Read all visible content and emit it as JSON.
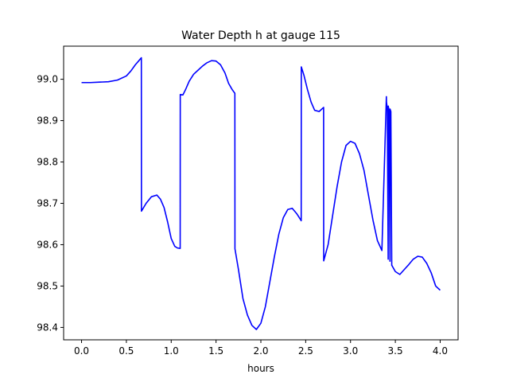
{
  "chart_data": {
    "type": "line",
    "title": "Water Depth h at gauge 115",
    "xlabel": "hours",
    "ylabel": "",
    "xlim": [
      -0.2,
      4.2
    ],
    "ylim": [
      98.37,
      99.08
    ],
    "grid": false,
    "xticks": [
      0.0,
      0.5,
      1.0,
      1.5,
      2.0,
      2.5,
      3.0,
      3.5,
      4.0
    ],
    "xtick_labels": [
      "0.0",
      "0.5",
      "1.0",
      "1.5",
      "2.0",
      "2.5",
      "3.0",
      "3.5",
      "4.0"
    ],
    "yticks": [
      98.4,
      98.5,
      98.6,
      98.7,
      98.8,
      98.9,
      99.0
    ],
    "ytick_labels": [
      "98.4",
      "98.5",
      "98.6",
      "98.7",
      "98.8",
      "98.9",
      "99.0"
    ],
    "series": [
      {
        "color": "#0000ff",
        "x": [
          0.0,
          0.1,
          0.2,
          0.3,
          0.4,
          0.5,
          0.55,
          0.6,
          0.64,
          0.667,
          0.668,
          0.72,
          0.78,
          0.84,
          0.88,
          0.92,
          0.96,
          1.0,
          1.04,
          1.07,
          1.1,
          1.101,
          1.13,
          1.16,
          1.2,
          1.25,
          1.3,
          1.35,
          1.4,
          1.45,
          1.5,
          1.55,
          1.6,
          1.64,
          1.68,
          1.71,
          1.711,
          1.75,
          1.8,
          1.85,
          1.9,
          1.95,
          2.0,
          2.05,
          2.1,
          2.15,
          2.2,
          2.25,
          2.3,
          2.35,
          2.4,
          2.43,
          2.45,
          2.451,
          2.48,
          2.52,
          2.56,
          2.6,
          2.65,
          2.7,
          2.701,
          2.75,
          2.8,
          2.85,
          2.9,
          2.95,
          3.0,
          3.05,
          3.1,
          3.15,
          3.2,
          3.25,
          3.3,
          3.35,
          3.4,
          3.401,
          3.41,
          3.42,
          3.421,
          3.43,
          3.44,
          3.441,
          3.45,
          3.46,
          3.461,
          3.5,
          3.55,
          3.6,
          3.65,
          3.7,
          3.75,
          3.8,
          3.85,
          3.9,
          3.95,
          4.0
        ],
        "y": [
          98.992,
          98.992,
          98.993,
          98.994,
          98.998,
          99.008,
          99.02,
          99.035,
          99.045,
          99.052,
          98.681,
          98.7,
          98.716,
          98.72,
          98.71,
          98.69,
          98.655,
          98.615,
          98.596,
          98.592,
          98.591,
          98.963,
          98.962,
          98.975,
          98.995,
          99.012,
          99.022,
          99.032,
          99.04,
          99.045,
          99.044,
          99.035,
          99.015,
          98.99,
          98.975,
          98.966,
          98.59,
          98.54,
          98.47,
          98.43,
          98.405,
          98.395,
          98.41,
          98.45,
          98.51,
          98.57,
          98.625,
          98.665,
          98.685,
          98.688,
          98.675,
          98.665,
          98.658,
          99.03,
          99.01,
          98.975,
          98.945,
          98.925,
          98.922,
          98.932,
          98.561,
          98.6,
          98.67,
          98.74,
          98.8,
          98.84,
          98.85,
          98.845,
          98.82,
          98.78,
          98.72,
          98.66,
          98.61,
          98.586,
          98.958,
          98.945,
          98.93,
          98.565,
          98.935,
          98.925,
          98.56,
          98.928,
          98.922,
          98.55,
          98.55,
          98.535,
          98.528,
          98.54,
          98.552,
          98.565,
          98.572,
          98.57,
          98.555,
          98.532,
          98.5,
          98.49
        ]
      }
    ]
  }
}
